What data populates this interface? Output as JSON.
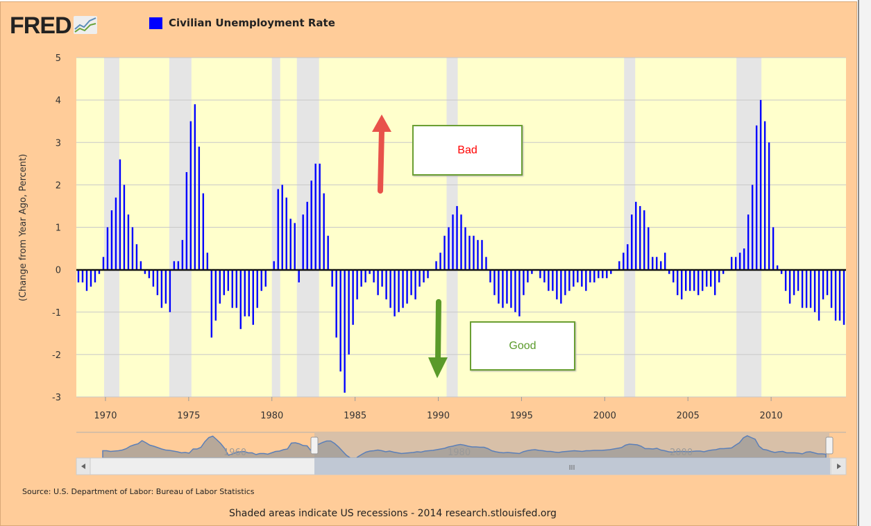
{
  "logo": "FRED",
  "legend": {
    "label": "Civilian Unemployment Rate",
    "color": "#0000ff"
  },
  "chart_data": {
    "type": "bar",
    "title": "",
    "series": [
      {
        "name": "Civilian Unemployment Rate",
        "start": "1968-Q2",
        "frequency": "quarterly",
        "values": [
          -0.3,
          -0.3,
          -0.5,
          -0.4,
          -0.3,
          -0.1,
          0.3,
          1.0,
          1.4,
          1.7,
          2.6,
          2.0,
          1.3,
          1.0,
          0.6,
          0.2,
          -0.1,
          -0.2,
          -0.4,
          -0.6,
          -0.9,
          -0.8,
          -1.0,
          0.2,
          0.2,
          0.7,
          2.3,
          3.5,
          3.9,
          2.9,
          1.8,
          0.4,
          -1.6,
          -1.2,
          -0.8,
          -0.6,
          -0.5,
          -0.9,
          -0.9,
          -1.4,
          -1.1,
          -1.1,
          -1.3,
          -0.9,
          -0.5,
          -0.4,
          0.0,
          0.2,
          1.9,
          2.0,
          1.7,
          1.2,
          1.1,
          -0.3,
          1.3,
          1.6,
          2.1,
          2.5,
          2.5,
          1.8,
          0.8,
          -0.4,
          -1.6,
          -2.4,
          -2.9,
          -2.0,
          -1.3,
          -0.7,
          -0.4,
          -0.3,
          -0.1,
          -0.3,
          -0.6,
          -0.4,
          -0.7,
          -0.9,
          -1.1,
          -1.0,
          -0.9,
          -0.8,
          -0.6,
          -0.7,
          -0.4,
          -0.3,
          -0.2,
          0.0,
          0.2,
          0.4,
          0.8,
          1.0,
          1.3,
          1.5,
          1.3,
          1.0,
          0.8,
          0.8,
          0.7,
          0.7,
          0.3,
          -0.3,
          -0.6,
          -0.8,
          -0.9,
          -0.8,
          -0.9,
          -1.0,
          -1.1,
          -0.6,
          -0.3,
          -0.1,
          0.0,
          -0.2,
          -0.3,
          -0.5,
          -0.5,
          -0.7,
          -0.8,
          -0.6,
          -0.5,
          -0.4,
          -0.3,
          -0.4,
          -0.5,
          -0.3,
          -0.3,
          -0.2,
          -0.2,
          -0.2,
          -0.1,
          0.0,
          0.2,
          0.4,
          0.6,
          1.3,
          1.6,
          1.5,
          1.4,
          1.0,
          0.3,
          0.3,
          0.2,
          0.4,
          -0.1,
          -0.3,
          -0.6,
          -0.7,
          -0.5,
          -0.5,
          -0.5,
          -0.6,
          -0.5,
          -0.4,
          -0.4,
          -0.6,
          -0.3,
          -0.1,
          0.0,
          0.3,
          0.3,
          0.4,
          0.5,
          1.3,
          2.0,
          3.4,
          4.0,
          3.5,
          3.0,
          1.0,
          0.1,
          -0.1,
          -0.5,
          -0.8,
          -0.6,
          -0.5,
          -0.9,
          -0.9,
          -0.9,
          -1.0,
          -1.2,
          -0.7,
          -0.6,
          -0.9,
          -1.2,
          -1.2,
          -1.3
        ]
      }
    ],
    "ylabel": "(Change from Year Ago, Percent)",
    "xlabel": "",
    "ylim": [
      -3,
      5
    ],
    "xlim": [
      "1968-04",
      "2014-07"
    ],
    "yticks": [
      "5",
      "4",
      "3",
      "2",
      "1",
      "0",
      "-1",
      "-2",
      "-3"
    ],
    "xticks": [
      "1970",
      "1975",
      "1980",
      "1985",
      "1990",
      "1995",
      "2000",
      "2005",
      "2010"
    ],
    "grid": true,
    "legend_position": "top-left",
    "recessions": [
      [
        "1969-12",
        "1970-11"
      ],
      [
        "1973-11",
        "1975-03"
      ],
      [
        "1980-01",
        "1980-07"
      ],
      [
        "1981-07",
        "1982-11"
      ],
      [
        "1990-07",
        "1991-03"
      ],
      [
        "2001-03",
        "2001-11"
      ],
      [
        "2007-12",
        "2009-06"
      ]
    ],
    "colors": {
      "bars": "#0000ff",
      "plot_bg": "#ffffcc",
      "recession": "#e5e5e5",
      "page_bg": "#ffcc99"
    },
    "annotations": [
      {
        "text": "Bad",
        "color": "#ff0000",
        "arrow": "up",
        "arrow_color": "#e8524a"
      },
      {
        "text": "Good",
        "color": "#5a9a2a",
        "arrow": "down",
        "arrow_color": "#5a9a2a"
      }
    ]
  },
  "navigator": {
    "labels": [
      "1960",
      "1980",
      "2000"
    ],
    "scroll_grip": "III"
  },
  "source": "Source: U.S. Department of Labor: Bureau of Labor Statistics",
  "footer": "Shaded areas indicate US recessions - 2014 research.stlouisfed.org"
}
